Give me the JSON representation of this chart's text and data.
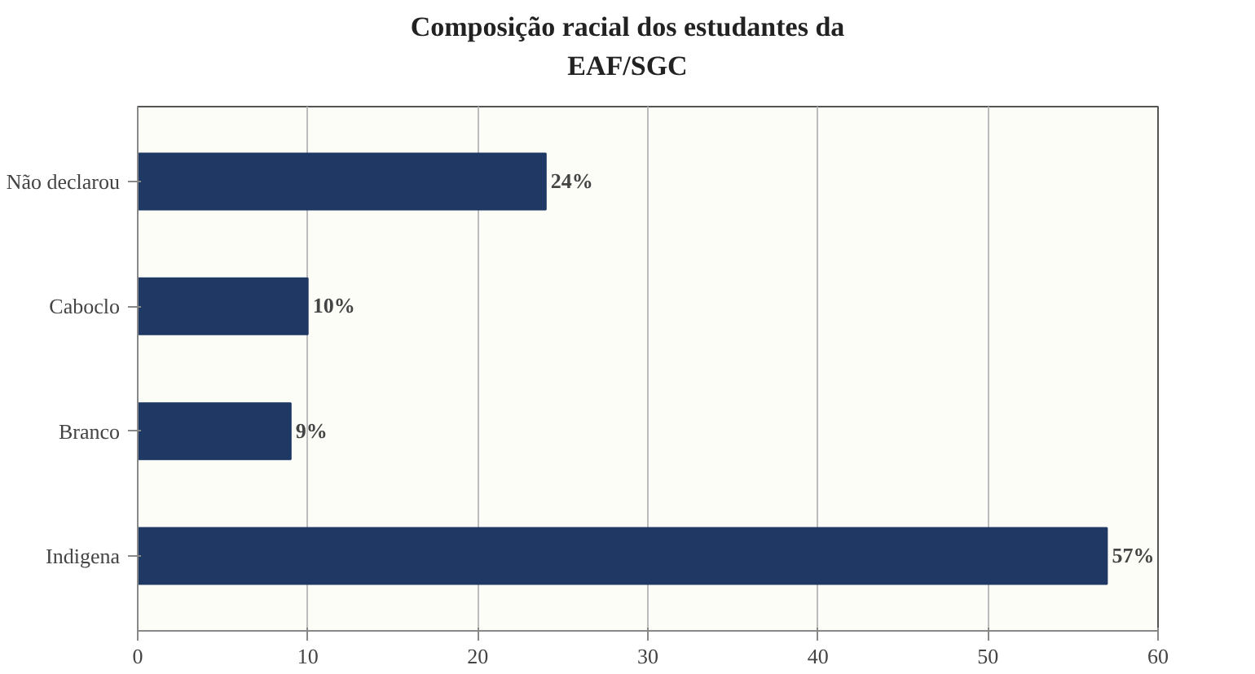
{
  "chart_data": {
    "type": "bar",
    "orientation": "horizontal",
    "title": "Composição racial dos estudantes da\nEAF/SGC",
    "categories": [
      "Não declarou",
      "Caboclo",
      "Branco",
      "Indigena"
    ],
    "values": [
      24,
      10,
      9,
      57
    ],
    "value_labels": [
      "24%",
      "10%",
      "9%",
      "57%"
    ],
    "color": "#1f3864",
    "xlim": [
      0,
      60
    ],
    "xticks": [
      0,
      10,
      20,
      30,
      40,
      50,
      60
    ],
    "grid": "x"
  }
}
